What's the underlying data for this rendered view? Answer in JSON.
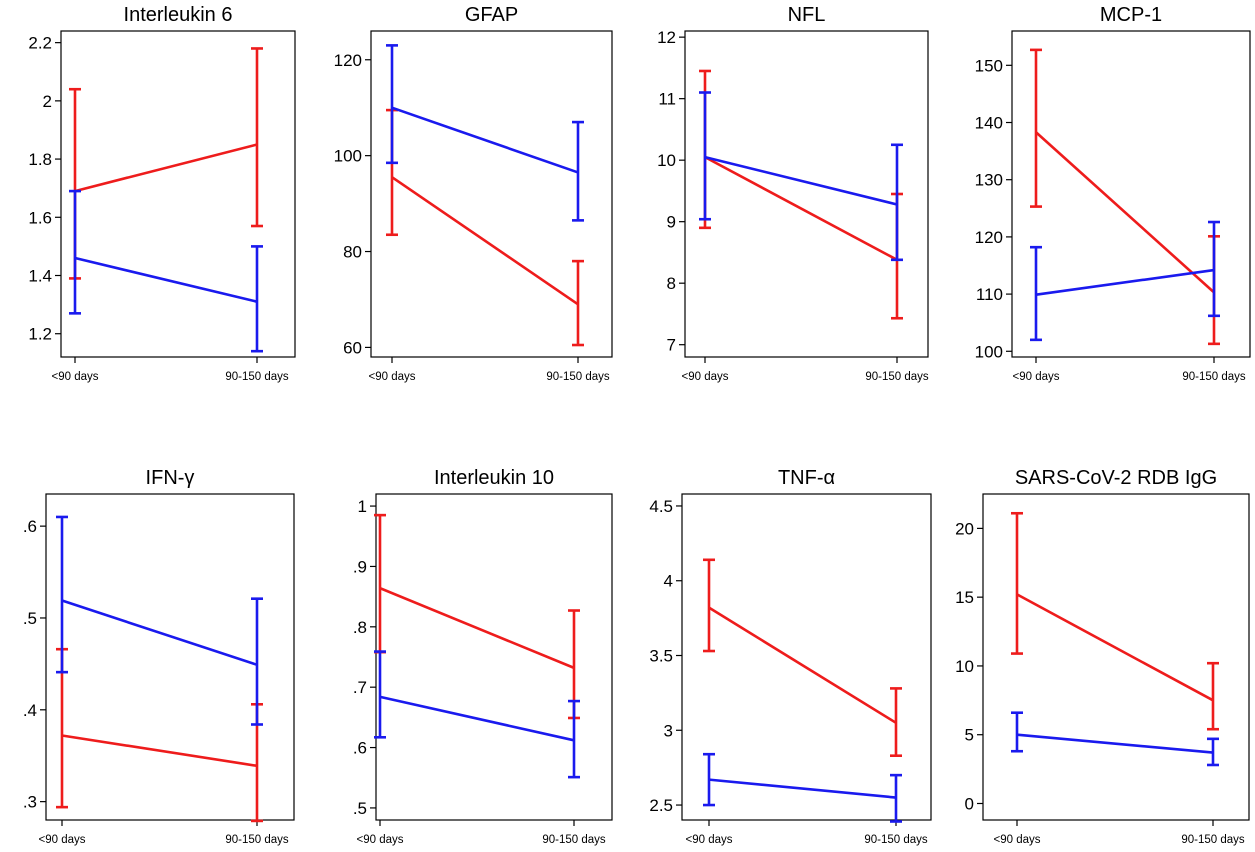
{
  "colors": {
    "series_a": "#ee1c1c",
    "series_b": "#1a1aee"
  },
  "chart_data": [
    {
      "type": "line",
      "title": "Interleukin 6",
      "categories": [
        "<90 days",
        "90-150 days"
      ],
      "ylim": [
        1.12,
        2.24
      ],
      "yticks": [
        "1.2",
        "1.4",
        "1.6",
        "1.8",
        "2",
        "2.2"
      ],
      "series": [
        {
          "color": "#ee1c1c",
          "values": [
            1.69,
            1.85
          ],
          "ci_low": [
            1.39,
            1.57
          ],
          "ci_high": [
            2.04,
            2.18
          ]
        },
        {
          "color": "#1a1aee",
          "values": [
            1.46,
            1.31
          ],
          "ci_low": [
            1.27,
            1.14
          ],
          "ci_high": [
            1.69,
            1.5
          ]
        }
      ]
    },
    {
      "type": "line",
      "title": "GFAP",
      "categories": [
        "<90 days",
        "90-150 days"
      ],
      "ylim": [
        58,
        126
      ],
      "yticks": [
        "60",
        "80",
        "100",
        "120"
      ],
      "series": [
        {
          "color": "#ee1c1c",
          "values": [
            95.5,
            69.0
          ],
          "ci_low": [
            83.5,
            60.5
          ],
          "ci_high": [
            109.5,
            78.0
          ]
        },
        {
          "color": "#1a1aee",
          "values": [
            110.0,
            96.5
          ],
          "ci_low": [
            98.5,
            86.5
          ],
          "ci_high": [
            123.0,
            107.0
          ]
        }
      ]
    },
    {
      "type": "line",
      "title": "NFL",
      "categories": [
        "<90 days",
        "90-150 days"
      ],
      "ylim": [
        6.8,
        12.1
      ],
      "yticks": [
        "7",
        "8",
        "9",
        "10",
        "11",
        "12"
      ],
      "series": [
        {
          "color": "#ee1c1c",
          "values": [
            10.05,
            8.38
          ],
          "ci_low": [
            8.9,
            7.43
          ],
          "ci_high": [
            11.45,
            9.45
          ]
        },
        {
          "color": "#1a1aee",
          "values": [
            10.05,
            9.28
          ],
          "ci_low": [
            9.04,
            8.38
          ],
          "ci_high": [
            11.1,
            10.25
          ]
        }
      ]
    },
    {
      "type": "line",
      "title": "MCP-1",
      "categories": [
        "<90 days",
        "90-150 days"
      ],
      "ylim": [
        99,
        156
      ],
      "yticks": [
        "100",
        "110",
        "120",
        "130",
        "140",
        "150"
      ],
      "series": [
        {
          "color": "#ee1c1c",
          "values": [
            138.3,
            110.3
          ],
          "ci_low": [
            125.3,
            101.3
          ],
          "ci_high": [
            152.7,
            120.1
          ]
        },
        {
          "color": "#1a1aee",
          "values": [
            109.9,
            114.2
          ],
          "ci_low": [
            102.0,
            106.2
          ],
          "ci_high": [
            118.2,
            122.6
          ]
        }
      ]
    },
    {
      "type": "line",
      "title": "IFN-γ",
      "categories": [
        "<90 days",
        "90-150 days"
      ],
      "ylim": [
        0.28,
        0.635
      ],
      "yticks": [
        ".3",
        ".4",
        ".5",
        ".6"
      ],
      "series": [
        {
          "color": "#ee1c1c",
          "values": [
            0.372,
            0.339
          ],
          "ci_low": [
            0.294,
            0.279
          ],
          "ci_high": [
            0.466,
            0.406
          ]
        },
        {
          "color": "#1a1aee",
          "values": [
            0.519,
            0.449
          ],
          "ci_low": [
            0.441,
            0.384
          ],
          "ci_high": [
            0.61,
            0.521
          ]
        }
      ]
    },
    {
      "type": "line",
      "title": "Interleukin 10",
      "categories": [
        "<90 days",
        "90-150 days"
      ],
      "ylim": [
        0.48,
        1.02
      ],
      "yticks": [
        ".5",
        ".6",
        ".7",
        ".8",
        ".9",
        "1"
      ],
      "series": [
        {
          "color": "#ee1c1c",
          "values": [
            0.864,
            0.732
          ],
          "ci_low": [
            0.758,
            0.649
          ],
          "ci_high": [
            0.985,
            0.827
          ]
        },
        {
          "color": "#1a1aee",
          "values": [
            0.684,
            0.612
          ],
          "ci_low": [
            0.617,
            0.551
          ],
          "ci_high": [
            0.759,
            0.677
          ]
        }
      ]
    },
    {
      "type": "line",
      "title": "TNF-α",
      "categories": [
        "<90 days",
        "90-150 days"
      ],
      "ylim": [
        2.4,
        4.58
      ],
      "yticks": [
        "2.5",
        "3",
        "3.5",
        "4",
        "4.5"
      ],
      "series": [
        {
          "color": "#ee1c1c",
          "values": [
            3.82,
            3.05
          ],
          "ci_low": [
            3.53,
            2.83
          ],
          "ci_high": [
            4.14,
            3.28
          ]
        },
        {
          "color": "#1a1aee",
          "values": [
            2.67,
            2.55
          ],
          "ci_low": [
            2.5,
            2.39
          ],
          "ci_high": [
            2.84,
            2.7
          ]
        }
      ]
    },
    {
      "type": "line",
      "title": "SARS-CoV-2 RDB IgG",
      "categories": [
        "<90 days",
        "90-150 days"
      ],
      "ylim": [
        -1.2,
        22.5
      ],
      "yticks": [
        "0",
        "5",
        "10",
        "15",
        "20"
      ],
      "series": [
        {
          "color": "#ee1c1c",
          "values": [
            15.2,
            7.5
          ],
          "ci_low": [
            10.9,
            5.4
          ],
          "ci_high": [
            21.1,
            10.2
          ]
        },
        {
          "color": "#1a1aee",
          "values": [
            5.0,
            3.7
          ],
          "ci_low": [
            3.8,
            2.8
          ],
          "ci_high": [
            6.6,
            4.7
          ]
        }
      ]
    }
  ]
}
